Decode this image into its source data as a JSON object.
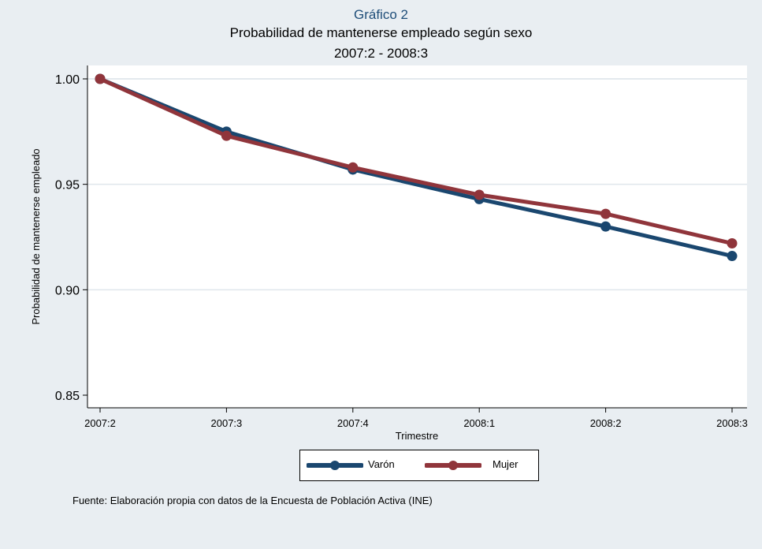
{
  "chart_data": {
    "type": "line",
    "kicker": "Gráfico 2",
    "title": "Probabilidad de mantenerse empleado según sexo",
    "subtitle": "2007:2 - 2008:3",
    "xlabel": "Trimestre",
    "ylabel": "Probabilidad de mantenerse empleado",
    "categories": [
      "2007:2",
      "2007:3",
      "2007:4",
      "2008:1",
      "2008:2",
      "2008:3"
    ],
    "ylim": [
      0.85,
      1.0
    ],
    "yticks": [
      0.85,
      0.9,
      0.95,
      1.0
    ],
    "ytick_labels": [
      "0.85",
      "0.90",
      "0.95",
      "1.00"
    ],
    "grid": true,
    "legend_position": "bottom",
    "series": [
      {
        "name": "Varón",
        "color": "#1a476f",
        "values": [
          1.0,
          0.975,
          0.957,
          0.943,
          0.93,
          0.916
        ]
      },
      {
        "name": "Mujer",
        "color": "#90353b",
        "values": [
          1.0,
          0.973,
          0.958,
          0.945,
          0.936,
          0.922
        ]
      }
    ]
  },
  "footer": {
    "source": "Fuente: Elaboración propia con datos de la Encuesta de Población Activa (INE)"
  }
}
